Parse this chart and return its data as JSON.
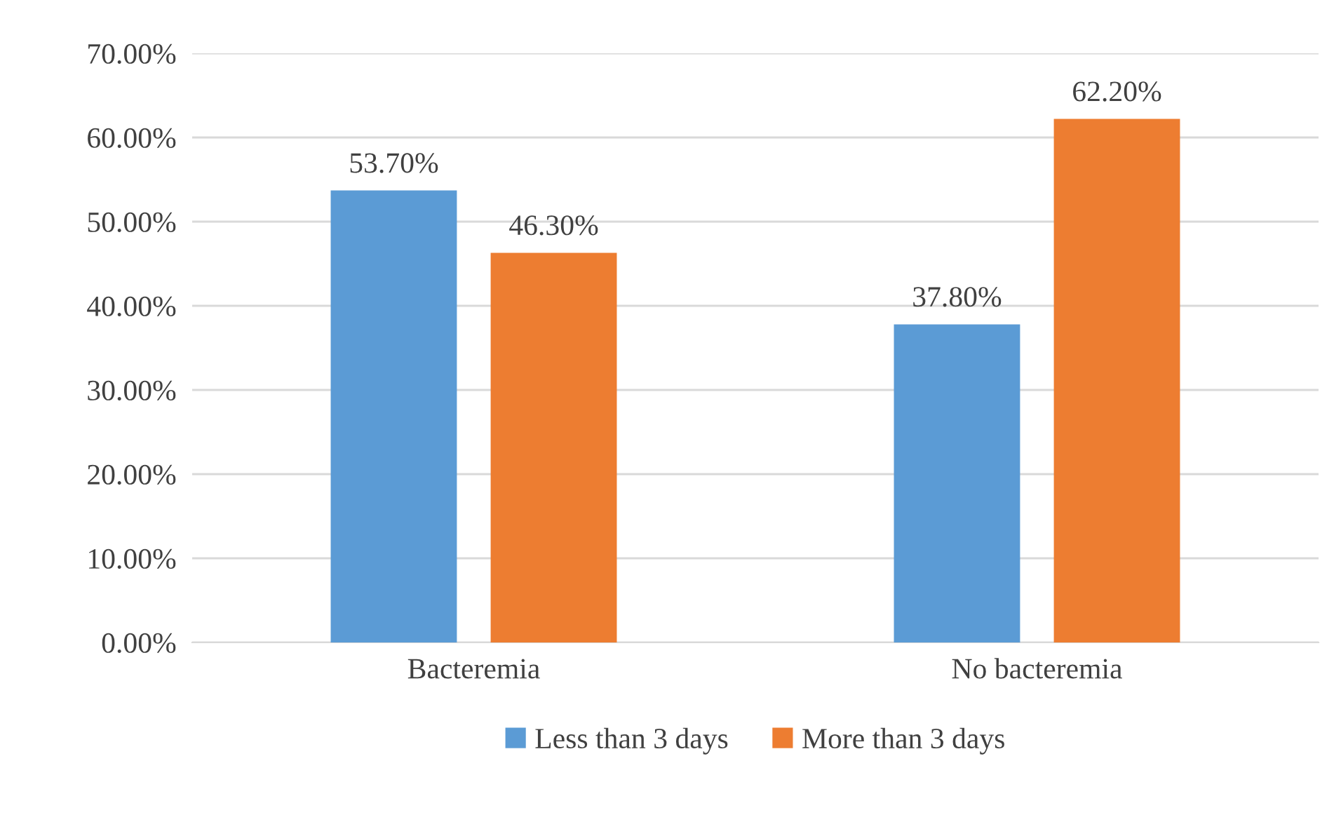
{
  "chart_data": {
    "type": "bar",
    "categories": [
      "Bacteremia",
      "No bacteremia"
    ],
    "series": [
      {
        "name": "Less than 3 days",
        "color": "#5b9bd5",
        "values": [
          53.7,
          37.8
        ],
        "value_labels": [
          "53.70%",
          "37.80%"
        ]
      },
      {
        "name": "More than 3 days",
        "color": "#ed7d31",
        "values": [
          46.3,
          62.2
        ],
        "value_labels": [
          "46.30%",
          "62.20%"
        ]
      }
    ],
    "ylim": [
      0,
      70
    ],
    "yticks": [
      {
        "value": 0,
        "label": "0.00%"
      },
      {
        "value": 10,
        "label": "10.00%"
      },
      {
        "value": 20,
        "label": "20.00%"
      },
      {
        "value": 30,
        "label": "30.00%"
      },
      {
        "value": 40,
        "label": "40.00%"
      },
      {
        "value": 50,
        "label": "50.00%"
      },
      {
        "value": 60,
        "label": "60.00%"
      },
      {
        "value": 70,
        "label": "70.00%"
      }
    ],
    "grid": "y",
    "legend": "bottom"
  }
}
